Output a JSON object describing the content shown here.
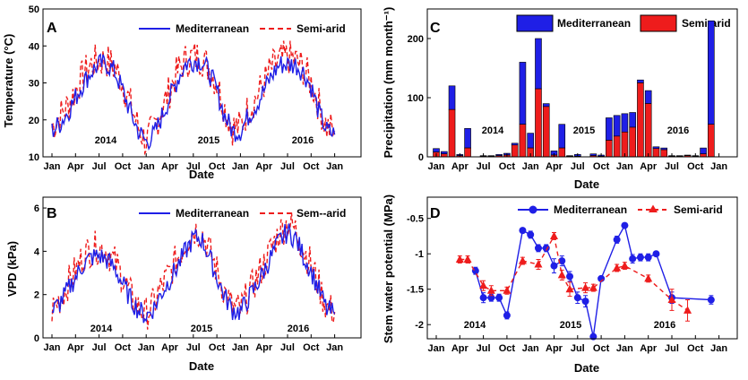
{
  "colors": {
    "mediterranean": "#1f1fe6",
    "semiarid": "#ee1c1c"
  },
  "legend": {
    "mediterranean": "Mediterranean",
    "semiarid": "Semi-arid",
    "semiarid_b": "Sem--arid"
  },
  "months": [
    "Jan",
    "Apr",
    "Jul",
    "Oct",
    "Jan",
    "Apr",
    "Jul",
    "Oct",
    "Jan",
    "Apr",
    "Jul",
    "Oct",
    "Jan"
  ],
  "years": [
    "2014",
    "2015",
    "2016"
  ],
  "chart_data": [
    {
      "id": "A",
      "panel": "A",
      "type": "line",
      "title": "",
      "xlabel": "Date",
      "ylabel": "Temperature (°C)",
      "ylim": [
        10,
        50
      ],
      "yticks": [
        "10",
        "20",
        "30",
        "40",
        "50"
      ],
      "series": [
        {
          "name": "Mediterranean",
          "style": "solid",
          "x_unit": "month index from Jan 2014",
          "x": [
            0,
            1,
            2,
            3,
            4,
            5,
            6,
            7,
            8,
            9,
            10,
            11,
            12,
            13,
            14,
            15,
            16,
            17,
            18,
            19,
            20,
            21,
            22,
            23,
            24,
            25,
            26,
            27,
            28,
            29,
            30,
            31,
            32,
            33,
            34,
            35,
            36
          ],
          "values": [
            17,
            19,
            22,
            26,
            30,
            33,
            35,
            35,
            33,
            28,
            22,
            17,
            14,
            16,
            21,
            26,
            31,
            35,
            36,
            36,
            33,
            28,
            21,
            17,
            17,
            21,
            24,
            28,
            32,
            35,
            35,
            35,
            33,
            29,
            22,
            17,
            16
          ],
          "spread": 3
        },
        {
          "name": "Semi-arid",
          "style": "dashed",
          "x_unit": "month index from Jan 2014",
          "x": [
            0,
            1,
            2,
            3,
            4,
            5,
            6,
            7,
            8,
            9,
            10,
            11,
            12,
            13,
            14,
            15,
            16,
            17,
            18,
            19,
            20,
            21,
            22,
            23,
            24,
            25,
            26,
            27,
            28,
            29,
            30,
            31,
            32,
            33,
            34,
            35,
            36
          ],
          "values": [
            18,
            21,
            24,
            28,
            32,
            35,
            36,
            36,
            34,
            30,
            24,
            18,
            14,
            18,
            23,
            28,
            33,
            36,
            37,
            37,
            34,
            30,
            23,
            18,
            18,
            23,
            26,
            30,
            34,
            36,
            37,
            36,
            34,
            30,
            24,
            18,
            17
          ],
          "spread": 5
        }
      ]
    },
    {
      "id": "B",
      "panel": "B",
      "type": "line",
      "title": "",
      "xlabel": "Date",
      "ylabel": "VPD (kPa)",
      "ylim": [
        0,
        6.5
      ],
      "yticks": [
        "0",
        "2",
        "4",
        "6"
      ],
      "series": [
        {
          "name": "Mediterranean",
          "style": "solid",
          "x_unit": "month index from Jan 2014",
          "x": [
            0,
            1,
            2,
            3,
            4,
            5,
            6,
            7,
            8,
            9,
            10,
            11,
            12,
            13,
            14,
            15,
            16,
            17,
            18,
            19,
            20,
            21,
            22,
            23,
            24,
            25,
            26,
            27,
            28,
            29,
            30,
            31,
            32,
            33,
            34,
            35,
            36
          ],
          "values": [
            1.2,
            1.6,
            2.2,
            2.8,
            3.4,
            3.7,
            3.8,
            3.6,
            3.2,
            2.5,
            1.8,
            1.3,
            1.0,
            1.4,
            2.1,
            2.7,
            3.3,
            4.0,
            4.6,
            4.6,
            3.8,
            2.8,
            1.9,
            1.3,
            1.2,
            1.8,
            2.4,
            3.1,
            3.8,
            4.5,
            4.9,
            4.6,
            3.8,
            3.1,
            2.2,
            1.3,
            1.1
          ],
          "spread": 0.5
        },
        {
          "name": "Sem--arid",
          "style": "dashed",
          "x_unit": "month index from Jan 2014",
          "x": [
            0,
            1,
            2,
            3,
            4,
            5,
            6,
            7,
            8,
            9,
            10,
            11,
            12,
            13,
            14,
            15,
            16,
            17,
            18,
            19,
            20,
            21,
            22,
            23,
            24,
            25,
            26,
            27,
            28,
            29,
            30,
            31,
            32,
            33,
            34,
            35,
            36
          ],
          "values": [
            1.3,
            1.8,
            2.5,
            3.1,
            3.8,
            4.1,
            4.2,
            4.0,
            3.5,
            2.8,
            2.0,
            1.4,
            1.1,
            1.6,
            2.4,
            3.0,
            3.7,
            4.4,
            5.0,
            4.9,
            4.1,
            3.1,
            2.1,
            1.4,
            1.3,
            2.0,
            2.7,
            3.4,
            4.2,
            4.9,
            5.3,
            5.0,
            4.1,
            3.4,
            2.4,
            1.4,
            1.2
          ],
          "spread": 0.8
        }
      ]
    },
    {
      "id": "C",
      "panel": "C",
      "type": "bar",
      "stacked": true,
      "title": "",
      "xlabel": "Date",
      "ylabel": "Precipitation (mm month⁻¹)",
      "ylim": [
        0,
        250
      ],
      "yticks": [
        "0",
        "100",
        "200"
      ],
      "x_unit": "month index from Jan 2014",
      "x": [
        0,
        1,
        2,
        3,
        4,
        6,
        7,
        8,
        9,
        10,
        11,
        12,
        13,
        14,
        15,
        16,
        17,
        18,
        20,
        21,
        22,
        23,
        24,
        25,
        26,
        27,
        28,
        29,
        30,
        31,
        32,
        33,
        34,
        35
      ],
      "series": [
        {
          "name": "Semi-arid",
          "values": [
            8,
            5,
            80,
            2,
            15,
            1,
            1,
            2,
            3,
            20,
            55,
            15,
            115,
            85,
            3,
            15,
            1,
            1,
            2,
            1,
            28,
            35,
            42,
            50,
            125,
            90,
            14,
            12,
            1,
            1,
            2,
            1,
            5,
            55
          ]
        },
        {
          "name": "Mediterranean",
          "values": [
            6,
            4,
            40,
            2,
            33,
            1,
            1,
            2,
            3,
            3,
            105,
            25,
            85,
            5,
            7,
            40,
            1,
            3,
            3,
            2,
            38,
            35,
            31,
            25,
            5,
            22,
            3,
            3,
            1,
            1,
            1,
            1,
            10,
            175
          ]
        }
      ]
    },
    {
      "id": "D",
      "panel": "D",
      "type": "line",
      "title": "",
      "xlabel": "Date",
      "ylabel": "Stem water potential (MPa)",
      "ylim": [
        -2.2,
        -0.2
      ],
      "yticks": [
        "-2",
        "-1.5",
        "-1",
        "-0.5"
      ],
      "series": [
        {
          "name": "Mediterranean",
          "style": "solid",
          "marker": "circle",
          "x_unit": "month index from Jan 2014",
          "x": [
            5,
            6,
            7,
            8,
            9,
            11,
            12,
            13,
            14,
            15,
            16,
            17,
            18,
            19,
            20,
            21,
            23,
            24,
            25,
            26,
            27,
            28,
            30,
            35
          ],
          "values": [
            -1.24,
            -1.62,
            -1.62,
            -1.62,
            -1.87,
            -0.67,
            -0.73,
            -0.92,
            -0.92,
            -1.17,
            -1.1,
            -1.32,
            -1.62,
            -1.67,
            -2.17,
            -1.35,
            -0.8,
            -0.6,
            -1.07,
            -1.05,
            -1.05,
            -1.0,
            -1.62,
            -1.65
          ],
          "errors": [
            0.05,
            0.07,
            0.05,
            0.05,
            0.05,
            0.03,
            0.05,
            0.05,
            0.05,
            0.1,
            0.07,
            0.07,
            0.08,
            0.08,
            0.03,
            0.03,
            0.05,
            0.03,
            0.06,
            0.05,
            0.05,
            0.03,
            0.08,
            0.06
          ]
        },
        {
          "name": "Semi-arid",
          "style": "dashed",
          "marker": "triangle",
          "x_unit": "month index from Jan 2014",
          "x": [
            3,
            4,
            6,
            7,
            9,
            11,
            13,
            15,
            16,
            17,
            19,
            20,
            23,
            24,
            27,
            30,
            32
          ],
          "values": [
            -1.08,
            -1.08,
            -1.45,
            -1.52,
            -1.52,
            -1.1,
            -1.15,
            -0.75,
            -1.3,
            -1.5,
            -1.48,
            -1.48,
            -1.2,
            -1.17,
            -1.35,
            -1.65,
            -1.8
          ],
          "errors": [
            0.05,
            0.05,
            0.07,
            0.07,
            0.05,
            0.05,
            0.07,
            0.05,
            0.07,
            0.1,
            0.07,
            0.05,
            0.05,
            0.05,
            0.05,
            0.15,
            0.15
          ]
        }
      ]
    }
  ]
}
